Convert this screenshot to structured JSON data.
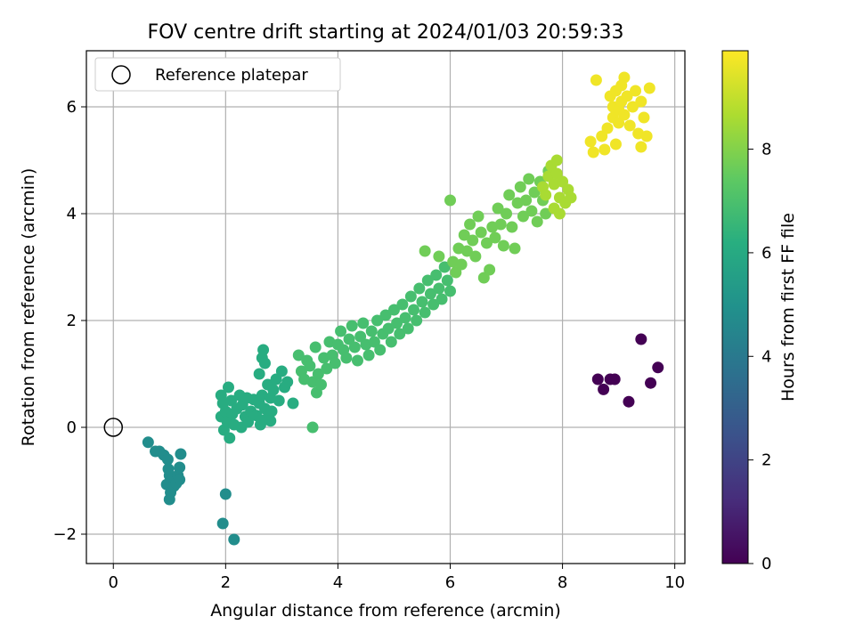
{
  "chart_data": {
    "type": "scatter",
    "title": "FOV centre drift starting at 2024/01/03 20:59:33",
    "xlabel": "Angular distance from reference (arcmin)",
    "ylabel": "Rotation from reference (arcmin)",
    "xlim": [
      -0.48,
      10.18
    ],
    "ylim": [
      -2.55,
      7.05
    ],
    "xticks": [
      "0",
      "2",
      "4",
      "6",
      "8",
      "10"
    ],
    "yticks": [
      "−2",
      "0",
      "2",
      "4",
      "6"
    ],
    "xtick_values": [
      0,
      2,
      4,
      6,
      8,
      10
    ],
    "ytick_values": [
      -2,
      0,
      2,
      4,
      6
    ],
    "grid": true,
    "legend": {
      "label": "Reference platepar",
      "placement": "top-left"
    },
    "reference_point": {
      "x": 0,
      "y": 0
    },
    "colorbar": {
      "label": "Hours from first FF file",
      "colormap": "viridis",
      "range": [
        0,
        9.9
      ],
      "ticks": [
        "0",
        "2",
        "4",
        "6",
        "8"
      ],
      "tick_values": [
        0,
        2,
        4,
        6,
        8
      ]
    },
    "series": [
      {
        "hours": 0.0,
        "points": [
          [
            8.63,
            0.9
          ],
          [
            8.73,
            0.71
          ],
          [
            8.85,
            0.9
          ],
          [
            8.93,
            0.9
          ],
          [
            9.18,
            0.48
          ],
          [
            9.4,
            1.65
          ],
          [
            9.57,
            0.83
          ],
          [
            9.7,
            1.12
          ]
        ]
      },
      {
        "hours": 4.8,
        "points": [
          [
            0.62,
            -0.28
          ],
          [
            0.75,
            -0.45
          ],
          [
            0.82,
            -0.45
          ],
          [
            0.9,
            -0.52
          ],
          [
            0.97,
            -0.6
          ],
          [
            0.98,
            -0.78
          ],
          [
            1.0,
            -0.9
          ],
          [
            1.02,
            -1.02
          ],
          [
            0.95,
            -1.07
          ],
          [
            1.02,
            -1.22
          ],
          [
            1.0,
            -1.35
          ],
          [
            1.08,
            -1.1
          ],
          [
            1.12,
            -1.05
          ],
          [
            1.15,
            -0.9
          ],
          [
            1.18,
            -0.75
          ],
          [
            1.2,
            -0.5
          ],
          [
            1.18,
            -0.98
          ],
          [
            1.95,
            -1.8
          ],
          [
            2.0,
            -1.25
          ],
          [
            2.15,
            -2.1
          ]
        ]
      },
      {
        "hours": 6.1,
        "points": [
          [
            1.92,
            0.6
          ],
          [
            1.95,
            0.45
          ],
          [
            1.92,
            0.2
          ],
          [
            1.97,
            -0.05
          ],
          [
            2.0,
            0.3
          ],
          [
            2.03,
            0.1
          ],
          [
            2.05,
            0.75
          ],
          [
            2.07,
            -0.2
          ],
          [
            2.1,
            0.5
          ],
          [
            2.12,
            0.25
          ],
          [
            2.15,
            0.05
          ],
          [
            2.2,
            0.35
          ],
          [
            2.25,
            0.6
          ],
          [
            2.28,
            0.0
          ],
          [
            2.3,
            0.42
          ],
          [
            2.35,
            0.2
          ],
          [
            2.38,
            0.55
          ],
          [
            2.4,
            0.1
          ],
          [
            2.45,
            0.3
          ],
          [
            2.5,
            0.52
          ],
          [
            2.55,
            0.22
          ],
          [
            2.6,
            0.45
          ],
          [
            2.62,
            0.05
          ],
          [
            2.65,
            0.6
          ],
          [
            2.7,
            0.35
          ],
          [
            2.72,
            0.15
          ],
          [
            2.75,
            0.8
          ],
          [
            2.8,
            0.55
          ],
          [
            2.82,
            0.3
          ],
          [
            2.85,
            0.7
          ],
          [
            2.9,
            0.9
          ],
          [
            2.95,
            0.5
          ],
          [
            2.6,
            1.0
          ],
          [
            2.65,
            1.3
          ],
          [
            2.67,
            1.45
          ],
          [
            2.7,
            1.2
          ],
          [
            2.8,
            0.12
          ],
          [
            3.0,
            1.05
          ],
          [
            3.05,
            0.75
          ],
          [
            3.1,
            0.85
          ],
          [
            3.2,
            0.45
          ]
        ]
      },
      {
        "hours": 6.9,
        "points": [
          [
            3.3,
            1.35
          ],
          [
            3.35,
            1.05
          ],
          [
            3.4,
            0.9
          ],
          [
            3.45,
            1.25
          ],
          [
            3.5,
            1.15
          ],
          [
            3.55,
            0.85
          ],
          [
            3.6,
            1.5
          ],
          [
            3.62,
            0.65
          ],
          [
            3.65,
            1.0
          ],
          [
            3.7,
            0.8
          ],
          [
            3.75,
            1.3
          ],
          [
            3.8,
            1.1
          ],
          [
            3.55,
            0.0
          ],
          [
            3.85,
            1.6
          ],
          [
            3.9,
            1.35
          ],
          [
            3.95,
            1.2
          ],
          [
            4.0,
            1.55
          ],
          [
            4.05,
            1.8
          ],
          [
            4.1,
            1.45
          ],
          [
            4.15,
            1.3
          ],
          [
            4.2,
            1.65
          ],
          [
            4.25,
            1.9
          ],
          [
            4.3,
            1.5
          ],
          [
            4.35,
            1.25
          ],
          [
            4.4,
            1.7
          ],
          [
            4.45,
            1.95
          ],
          [
            4.5,
            1.55
          ],
          [
            4.55,
            1.35
          ],
          [
            4.6,
            1.8
          ],
          [
            4.65,
            1.6
          ],
          [
            4.7,
            2.0
          ],
          [
            4.75,
            1.45
          ],
          [
            4.8,
            1.75
          ],
          [
            4.85,
            2.1
          ],
          [
            4.9,
            1.85
          ],
          [
            4.95,
            1.6
          ],
          [
            5.0,
            2.2
          ],
          [
            5.05,
            1.95
          ],
          [
            5.1,
            1.75
          ],
          [
            5.15,
            2.3
          ],
          [
            5.2,
            2.05
          ],
          [
            5.25,
            1.85
          ],
          [
            5.3,
            2.45
          ],
          [
            5.35,
            2.2
          ],
          [
            5.4,
            2.0
          ],
          [
            5.45,
            2.6
          ],
          [
            5.5,
            2.35
          ],
          [
            5.55,
            2.15
          ],
          [
            5.6,
            2.75
          ],
          [
            5.65,
            2.5
          ],
          [
            5.7,
            2.3
          ],
          [
            5.75,
            2.85
          ],
          [
            5.8,
            2.6
          ],
          [
            5.85,
            2.4
          ],
          [
            5.9,
            3.0
          ],
          [
            5.95,
            2.75
          ],
          [
            6.0,
            2.55
          ]
        ]
      },
      {
        "hours": 7.7,
        "points": [
          [
            5.55,
            3.3
          ],
          [
            5.8,
            3.2
          ],
          [
            6.0,
            4.25
          ],
          [
            6.05,
            3.1
          ],
          [
            6.1,
            2.9
          ],
          [
            6.15,
            3.35
          ],
          [
            6.2,
            3.05
          ],
          [
            6.25,
            3.6
          ],
          [
            6.3,
            3.3
          ],
          [
            6.35,
            3.8
          ],
          [
            6.4,
            3.5
          ],
          [
            6.45,
            3.2
          ],
          [
            6.5,
            3.95
          ],
          [
            6.55,
            3.65
          ],
          [
            6.6,
            2.8
          ],
          [
            6.65,
            3.45
          ],
          [
            6.7,
            2.95
          ],
          [
            6.75,
            3.75
          ],
          [
            6.8,
            3.55
          ],
          [
            6.85,
            4.1
          ],
          [
            6.9,
            3.8
          ],
          [
            6.95,
            3.4
          ],
          [
            7.0,
            4.0
          ],
          [
            7.05,
            4.35
          ],
          [
            7.1,
            3.75
          ],
          [
            7.15,
            3.35
          ],
          [
            7.2,
            4.2
          ],
          [
            7.25,
            4.5
          ],
          [
            7.3,
            3.95
          ],
          [
            7.35,
            4.25
          ],
          [
            7.4,
            4.65
          ],
          [
            7.45,
            4.05
          ],
          [
            7.5,
            4.4
          ],
          [
            7.55,
            3.85
          ],
          [
            7.6,
            4.6
          ],
          [
            7.65,
            4.25
          ],
          [
            7.7,
            4.0
          ],
          [
            7.75,
            4.8
          ]
        ]
      },
      {
        "hours": 8.6,
        "points": [
          [
            7.65,
            4.5
          ],
          [
            7.7,
            4.35
          ],
          [
            7.75,
            4.7
          ],
          [
            7.8,
            4.9
          ],
          [
            7.85,
            4.55
          ],
          [
            7.9,
            4.75
          ],
          [
            7.95,
            4.3
          ],
          [
            8.0,
            4.6
          ],
          [
            8.05,
            4.2
          ],
          [
            8.1,
            4.45
          ],
          [
            7.9,
            5.0
          ],
          [
            7.85,
            4.1
          ],
          [
            7.95,
            4.0
          ],
          [
            8.15,
            4.3
          ]
        ]
      },
      {
        "hours": 9.7,
        "points": [
          [
            8.5,
            5.35
          ],
          [
            8.55,
            5.15
          ],
          [
            8.6,
            6.5
          ],
          [
            8.7,
            5.45
          ],
          [
            8.75,
            5.2
          ],
          [
            8.8,
            5.6
          ],
          [
            8.85,
            6.2
          ],
          [
            8.9,
            5.8
          ],
          [
            8.95,
            5.3
          ],
          [
            8.9,
            6.0
          ],
          [
            8.95,
            6.3
          ],
          [
            9.0,
            5.7
          ],
          [
            9.0,
            5.95
          ],
          [
            9.05,
            6.1
          ],
          [
            9.1,
            5.85
          ],
          [
            9.15,
            6.2
          ],
          [
            9.1,
            6.55
          ],
          [
            9.2,
            5.65
          ],
          [
            9.25,
            6.0
          ],
          [
            9.3,
            6.3
          ],
          [
            9.35,
            5.5
          ],
          [
            9.4,
            5.25
          ],
          [
            9.45,
            5.8
          ],
          [
            9.5,
            5.45
          ],
          [
            9.55,
            6.35
          ],
          [
            9.4,
            6.1
          ],
          [
            9.05,
            6.4
          ]
        ]
      }
    ]
  }
}
